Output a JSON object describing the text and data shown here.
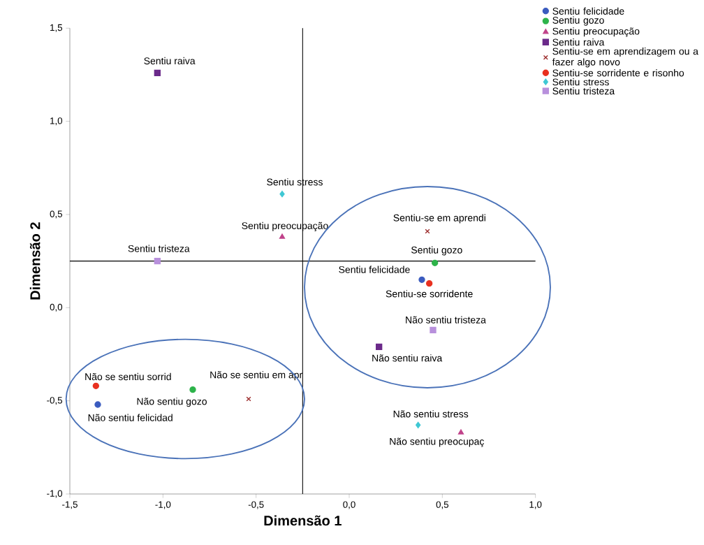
{
  "chart_data": {
    "type": "scatter",
    "xlabel": "Dimensão 1",
    "ylabel": "Dimensão 2",
    "xlim": [
      -1.5,
      1.0
    ],
    "ylim": [
      -1.0,
      1.5
    ],
    "xticks": [
      {
        "value": -1.5,
        "label": "-1,5"
      },
      {
        "value": -1.0,
        "label": "-1,0"
      },
      {
        "value": -0.5,
        "label": "-0,5"
      },
      {
        "value": 0.0,
        "label": "0,0"
      },
      {
        "value": 0.5,
        "label": "0,5"
      },
      {
        "value": 1.0,
        "label": "1,0"
      }
    ],
    "yticks": [
      {
        "value": -1.0,
        "label": "-1,0"
      },
      {
        "value": -0.5,
        "label": "-0,5"
      },
      {
        "value": 0.0,
        "label": "0,0"
      },
      {
        "value": 0.5,
        "label": "0,5"
      },
      {
        "value": 1.0,
        "label": "1,0"
      },
      {
        "value": 1.5,
        "label": "1,5"
      }
    ],
    "grid": false,
    "legend": "top right",
    "series": [
      {
        "name": "Sentiu felicidade",
        "color": "#3a5bbf",
        "marker": "circle",
        "x": [
          0.39,
          -1.35
        ],
        "values": [
          0.15,
          -0.52
        ]
      },
      {
        "name": "Sentiu gozo",
        "color": "#2db34a",
        "marker": "circle",
        "x": [
          0.46,
          -0.84
        ],
        "values": [
          0.24,
          -0.44
        ]
      },
      {
        "name": "Sentiu preocupação",
        "color": "#c0428a",
        "marker": "triangle",
        "x": [
          -0.36,
          0.6
        ],
        "values": [
          0.38,
          -0.67
        ]
      },
      {
        "name": "Sentiu raiva",
        "color": "#6b2a8a",
        "marker": "square",
        "x": [
          -1.03,
          0.16
        ],
        "values": [
          1.26,
          -0.21
        ]
      },
      {
        "name": "Sentiu-se em aprendizagem ou a fazer algo novo",
        "color": "#9b2a2a",
        "marker": "cross",
        "x": [
          0.42,
          -0.54
        ],
        "values": [
          0.41,
          -0.49
        ]
      },
      {
        "name": "Sentiu-se sorridente e risonho",
        "color": "#e8301f",
        "marker": "circle",
        "x": [
          0.43,
          -1.36
        ],
        "values": [
          0.13,
          -0.42
        ]
      },
      {
        "name": "Sentiu stress",
        "color": "#3fc8d4",
        "marker": "diamond",
        "x": [
          -0.36,
          0.37
        ],
        "values": [
          0.61,
          -0.63
        ]
      },
      {
        "name": "Sentiu tristeza",
        "color": "#b890dc",
        "marker": "square",
        "x": [
          -1.03,
          0.45
        ],
        "values": [
          0.25,
          -0.12
        ]
      }
    ],
    "ref_lines": [
      {
        "axis": "x",
        "value": -0.25,
        "color": "#000000"
      },
      {
        "axis": "y",
        "value": 0.25,
        "color": "#000000"
      }
    ],
    "annotations": [
      {
        "text": "Sentiu raiva",
        "x": -1.03,
        "y": 1.26
      },
      {
        "text": "Sentiu stress",
        "x": -0.36,
        "y": 0.61
      },
      {
        "text": "Sentiu preocupação",
        "x": -0.36,
        "y": 0.38
      },
      {
        "text": "Sentiu tristeza",
        "x": -1.03,
        "y": 0.25
      },
      {
        "text": "Sentiu-se em aprendi",
        "x": 0.42,
        "y": 0.41
      },
      {
        "text": "Sentiu gozo",
        "x": 0.46,
        "y": 0.24
      },
      {
        "text": "Sentiu felicidade",
        "x": 0.39,
        "y": 0.15
      },
      {
        "text": "Sentiu-se sorridente",
        "x": 0.43,
        "y": 0.13
      },
      {
        "text": "Não sentiu tristeza",
        "x": 0.45,
        "y": -0.12
      },
      {
        "text": "Não sentiu raiva",
        "x": 0.16,
        "y": -0.21
      },
      {
        "text": "Não se sentiu sorrid",
        "x": -1.36,
        "y": -0.42
      },
      {
        "text": "Não se sentiu em apr",
        "x": -0.54,
        "y": -0.49
      },
      {
        "text": "Não sentiu gozo",
        "x": -0.84,
        "y": -0.44
      },
      {
        "text": "Não sentiu felicidad",
        "x": -1.35,
        "y": -0.52
      },
      {
        "text": "Não sentiu stress",
        "x": 0.37,
        "y": -0.63
      },
      {
        "text": "Não sentiu preocupaç",
        "x": 0.6,
        "y": -0.67
      }
    ]
  }
}
